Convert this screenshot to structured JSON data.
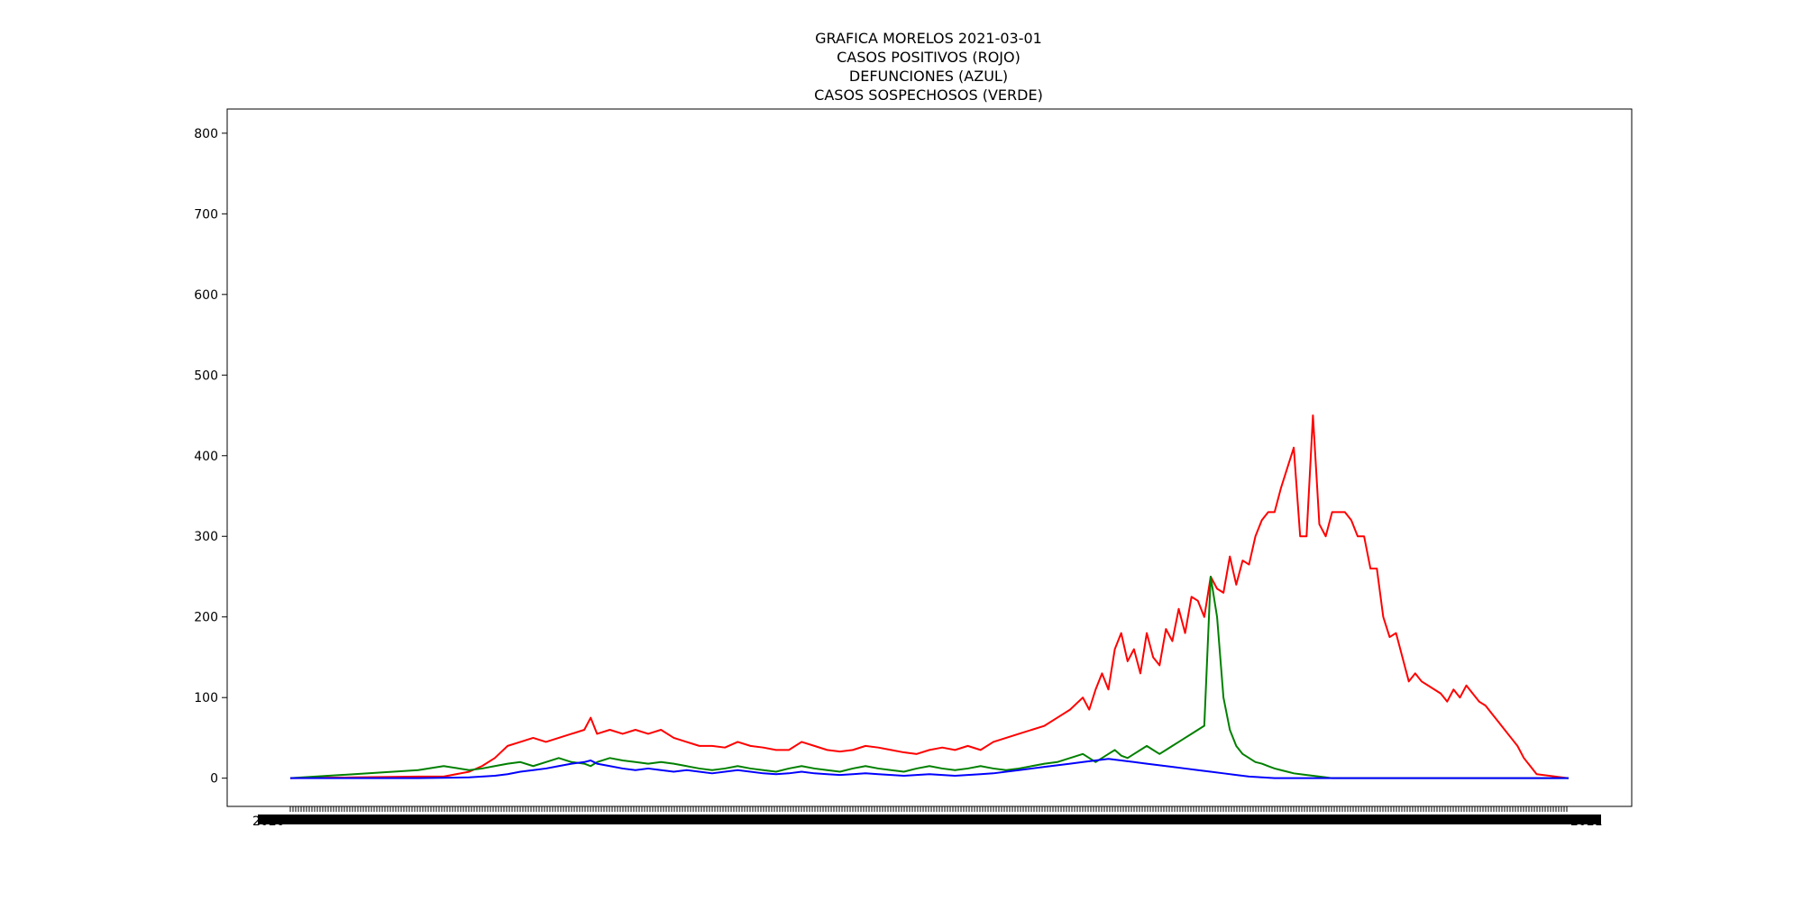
{
  "chart_data": {
    "type": "line",
    "title_lines": [
      "GRAFICA MORELOS 2021-03-01",
      "CASOS POSITIVOS (ROJO)",
      "DEFUNCIONES (AZUL)",
      "CASOS SOSPECHOSOS (VERDE)"
    ],
    "xlabel": "",
    "ylabel": "",
    "ylim": [
      -35,
      830
    ],
    "yticks": [
      0,
      100,
      200,
      300,
      400,
      500,
      600,
      700,
      800
    ],
    "grid": false,
    "legend": "none",
    "x_tick_labels": "dense, overlapping date labels (one per day, unreadable)",
    "x_tick_label_start": "2020",
    "x_tick_label_end": "2021",
    "series": [
      {
        "color": "#ff0000",
        "points": [
          [
            0,
            0
          ],
          [
            100,
            1
          ],
          [
            200,
            2
          ],
          [
            240,
            2
          ],
          [
            280,
            8
          ],
          [
            300,
            15
          ],
          [
            320,
            25
          ],
          [
            340,
            40
          ],
          [
            360,
            45
          ],
          [
            380,
            50
          ],
          [
            400,
            45
          ],
          [
            420,
            50
          ],
          [
            440,
            55
          ],
          [
            460,
            60
          ],
          [
            470,
            75
          ],
          [
            480,
            55
          ],
          [
            500,
            60
          ],
          [
            520,
            55
          ],
          [
            540,
            60
          ],
          [
            560,
            55
          ],
          [
            580,
            60
          ],
          [
            600,
            50
          ],
          [
            620,
            45
          ],
          [
            640,
            40
          ],
          [
            660,
            40
          ],
          [
            680,
            38
          ],
          [
            700,
            45
          ],
          [
            720,
            40
          ],
          [
            740,
            38
          ],
          [
            760,
            35
          ],
          [
            780,
            35
          ],
          [
            800,
            45
          ],
          [
            820,
            40
          ],
          [
            840,
            35
          ],
          [
            860,
            33
          ],
          [
            880,
            35
          ],
          [
            900,
            40
          ],
          [
            920,
            38
          ],
          [
            940,
            35
          ],
          [
            960,
            32
          ],
          [
            980,
            30
          ],
          [
            1000,
            35
          ],
          [
            1020,
            38
          ],
          [
            1040,
            35
          ],
          [
            1060,
            40
          ],
          [
            1080,
            35
          ],
          [
            1100,
            45
          ],
          [
            1120,
            50
          ],
          [
            1140,
            55
          ],
          [
            1160,
            60
          ],
          [
            1180,
            65
          ],
          [
            1200,
            75
          ],
          [
            1220,
            85
          ],
          [
            1240,
            100
          ],
          [
            1250,
            85
          ],
          [
            1260,
            110
          ],
          [
            1270,
            130
          ],
          [
            1280,
            110
          ],
          [
            1290,
            160
          ],
          [
            1300,
            180
          ],
          [
            1310,
            145
          ],
          [
            1320,
            160
          ],
          [
            1330,
            130
          ],
          [
            1340,
            180
          ],
          [
            1350,
            150
          ],
          [
            1360,
            140
          ],
          [
            1370,
            185
          ],
          [
            1380,
            170
          ],
          [
            1390,
            210
          ],
          [
            1400,
            180
          ],
          [
            1410,
            225
          ],
          [
            1420,
            220
          ],
          [
            1430,
            200
          ],
          [
            1440,
            250
          ],
          [
            1450,
            235
          ],
          [
            1460,
            230
          ],
          [
            1470,
            275
          ],
          [
            1480,
            240
          ],
          [
            1490,
            270
          ],
          [
            1500,
            265
          ],
          [
            1510,
            300
          ],
          [
            1520,
            320
          ],
          [
            1530,
            330
          ],
          [
            1540,
            330
          ],
          [
            1550,
            360
          ],
          [
            1560,
            385
          ],
          [
            1570,
            410
          ],
          [
            1580,
            300
          ],
          [
            1590,
            300
          ],
          [
            1600,
            450
          ],
          [
            1610,
            315
          ],
          [
            1620,
            300
          ],
          [
            1630,
            330
          ],
          [
            1640,
            330
          ],
          [
            1650,
            330
          ],
          [
            1660,
            320
          ],
          [
            1670,
            300
          ],
          [
            1680,
            300
          ],
          [
            1690,
            260
          ],
          [
            1700,
            260
          ],
          [
            1710,
            200
          ],
          [
            1720,
            175
          ],
          [
            1730,
            180
          ],
          [
            1740,
            150
          ],
          [
            1750,
            120
          ],
          [
            1760,
            130
          ],
          [
            1770,
            120
          ],
          [
            1780,
            115
          ],
          [
            1790,
            110
          ],
          [
            1800,
            105
          ],
          [
            1810,
            95
          ],
          [
            1820,
            110
          ],
          [
            1830,
            100
          ],
          [
            1840,
            115
          ],
          [
            1850,
            105
          ],
          [
            1860,
            95
          ],
          [
            1870,
            90
          ],
          [
            1880,
            80
          ],
          [
            1890,
            70
          ],
          [
            1900,
            60
          ],
          [
            1910,
            50
          ],
          [
            1920,
            40
          ],
          [
            1930,
            25
          ],
          [
            1940,
            15
          ],
          [
            1950,
            5
          ],
          [
            2000,
            0
          ]
        ]
      },
      {
        "color": "#008000",
        "points": [
          [
            0,
            0
          ],
          [
            100,
            5
          ],
          [
            200,
            10
          ],
          [
            240,
            15
          ],
          [
            280,
            10
          ],
          [
            300,
            12
          ],
          [
            320,
            15
          ],
          [
            340,
            18
          ],
          [
            360,
            20
          ],
          [
            380,
            15
          ],
          [
            400,
            20
          ],
          [
            420,
            25
          ],
          [
            440,
            20
          ],
          [
            460,
            18
          ],
          [
            470,
            15
          ],
          [
            480,
            20
          ],
          [
            500,
            25
          ],
          [
            520,
            22
          ],
          [
            540,
            20
          ],
          [
            560,
            18
          ],
          [
            580,
            20
          ],
          [
            600,
            18
          ],
          [
            620,
            15
          ],
          [
            640,
            12
          ],
          [
            660,
            10
          ],
          [
            680,
            12
          ],
          [
            700,
            15
          ],
          [
            720,
            12
          ],
          [
            740,
            10
          ],
          [
            760,
            8
          ],
          [
            780,
            12
          ],
          [
            800,
            15
          ],
          [
            820,
            12
          ],
          [
            840,
            10
          ],
          [
            860,
            8
          ],
          [
            880,
            12
          ],
          [
            900,
            15
          ],
          [
            920,
            12
          ],
          [
            940,
            10
          ],
          [
            960,
            8
          ],
          [
            980,
            12
          ],
          [
            1000,
            15
          ],
          [
            1020,
            12
          ],
          [
            1040,
            10
          ],
          [
            1060,
            12
          ],
          [
            1080,
            15
          ],
          [
            1100,
            12
          ],
          [
            1120,
            10
          ],
          [
            1140,
            12
          ],
          [
            1160,
            15
          ],
          [
            1180,
            18
          ],
          [
            1200,
            20
          ],
          [
            1220,
            25
          ],
          [
            1240,
            30
          ],
          [
            1250,
            25
          ],
          [
            1260,
            20
          ],
          [
            1270,
            25
          ],
          [
            1280,
            30
          ],
          [
            1290,
            35
          ],
          [
            1300,
            28
          ],
          [
            1310,
            25
          ],
          [
            1320,
            30
          ],
          [
            1330,
            35
          ],
          [
            1340,
            40
          ],
          [
            1350,
            35
          ],
          [
            1360,
            30
          ],
          [
            1370,
            35
          ],
          [
            1380,
            40
          ],
          [
            1390,
            45
          ],
          [
            1400,
            50
          ],
          [
            1410,
            55
          ],
          [
            1420,
            60
          ],
          [
            1430,
            65
          ],
          [
            1440,
            250
          ],
          [
            1450,
            200
          ],
          [
            1460,
            100
          ],
          [
            1470,
            60
          ],
          [
            1480,
            40
          ],
          [
            1490,
            30
          ],
          [
            1500,
            25
          ],
          [
            1510,
            20
          ],
          [
            1520,
            18
          ],
          [
            1530,
            15
          ],
          [
            1540,
            12
          ],
          [
            1550,
            10
          ],
          [
            1560,
            8
          ],
          [
            1570,
            6
          ],
          [
            1580,
            5
          ],
          [
            1590,
            4
          ],
          [
            1600,
            3
          ],
          [
            1610,
            2
          ],
          [
            1620,
            1
          ],
          [
            1630,
            0
          ],
          [
            2000,
            0
          ]
        ]
      },
      {
        "color": "#0000ff",
        "points": [
          [
            0,
            0
          ],
          [
            200,
            0
          ],
          [
            280,
            1
          ],
          [
            300,
            2
          ],
          [
            320,
            3
          ],
          [
            340,
            5
          ],
          [
            360,
            8
          ],
          [
            380,
            10
          ],
          [
            400,
            12
          ],
          [
            420,
            15
          ],
          [
            440,
            18
          ],
          [
            460,
            20
          ],
          [
            470,
            22
          ],
          [
            480,
            18
          ],
          [
            500,
            15
          ],
          [
            520,
            12
          ],
          [
            540,
            10
          ],
          [
            560,
            12
          ],
          [
            580,
            10
          ],
          [
            600,
            8
          ],
          [
            620,
            10
          ],
          [
            640,
            8
          ],
          [
            660,
            6
          ],
          [
            680,
            8
          ],
          [
            700,
            10
          ],
          [
            720,
            8
          ],
          [
            740,
            6
          ],
          [
            760,
            5
          ],
          [
            780,
            6
          ],
          [
            800,
            8
          ],
          [
            820,
            6
          ],
          [
            840,
            5
          ],
          [
            860,
            4
          ],
          [
            880,
            5
          ],
          [
            900,
            6
          ],
          [
            920,
            5
          ],
          [
            940,
            4
          ],
          [
            960,
            3
          ],
          [
            980,
            4
          ],
          [
            1000,
            5
          ],
          [
            1020,
            4
          ],
          [
            1040,
            3
          ],
          [
            1060,
            4
          ],
          [
            1080,
            5
          ],
          [
            1100,
            6
          ],
          [
            1120,
            8
          ],
          [
            1140,
            10
          ],
          [
            1160,
            12
          ],
          [
            1180,
            14
          ],
          [
            1200,
            16
          ],
          [
            1220,
            18
          ],
          [
            1240,
            20
          ],
          [
            1260,
            22
          ],
          [
            1280,
            24
          ],
          [
            1300,
            22
          ],
          [
            1320,
            20
          ],
          [
            1340,
            18
          ],
          [
            1360,
            16
          ],
          [
            1380,
            14
          ],
          [
            1400,
            12
          ],
          [
            1420,
            10
          ],
          [
            1440,
            8
          ],
          [
            1460,
            6
          ],
          [
            1480,
            4
          ],
          [
            1500,
            2
          ],
          [
            1520,
            1
          ],
          [
            1540,
            0
          ],
          [
            2000,
            0
          ]
        ]
      }
    ]
  }
}
